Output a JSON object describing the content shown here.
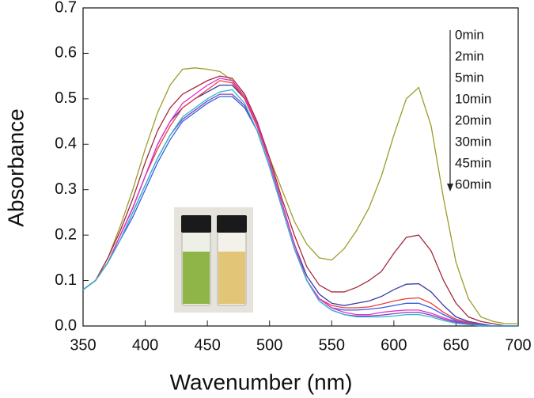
{
  "chart_data": {
    "type": "line",
    "x_label": "Wavenumber (nm)",
    "y_label": "Absorbance",
    "x": [
      350,
      360,
      370,
      380,
      390,
      400,
      410,
      420,
      430,
      440,
      450,
      460,
      470,
      480,
      490,
      500,
      510,
      520,
      530,
      540,
      550,
      560,
      570,
      580,
      590,
      600,
      610,
      620,
      630,
      640,
      650,
      660,
      670,
      680,
      690,
      700
    ],
    "series": [
      {
        "name": "0min",
        "color": "#9c9c2c",
        "values": [
          0.08,
          0.1,
          0.15,
          0.22,
          0.3,
          0.39,
          0.47,
          0.53,
          0.565,
          0.568,
          0.565,
          0.56,
          0.54,
          0.5,
          0.44,
          0.37,
          0.3,
          0.23,
          0.18,
          0.15,
          0.145,
          0.17,
          0.21,
          0.26,
          0.33,
          0.42,
          0.5,
          0.525,
          0.44,
          0.28,
          0.14,
          0.06,
          0.02,
          0.01,
          0.005,
          0.005
        ]
      },
      {
        "name": "2min",
        "color": "#a3283c",
        "values": [
          0.08,
          0.1,
          0.15,
          0.21,
          0.28,
          0.36,
          0.43,
          0.48,
          0.51,
          0.525,
          0.54,
          0.55,
          0.545,
          0.51,
          0.45,
          0.37,
          0.28,
          0.2,
          0.13,
          0.09,
          0.075,
          0.075,
          0.085,
          0.1,
          0.12,
          0.16,
          0.195,
          0.2,
          0.165,
          0.1,
          0.05,
          0.02,
          0.01,
          0.005,
          0,
          0
        ]
      },
      {
        "name": "5min",
        "color": "#3a3aa6",
        "values": [
          0.08,
          0.1,
          0.14,
          0.2,
          0.26,
          0.33,
          0.4,
          0.45,
          0.48,
          0.5,
          0.515,
          0.53,
          0.53,
          0.5,
          0.44,
          0.36,
          0.27,
          0.18,
          0.11,
          0.07,
          0.05,
          0.045,
          0.05,
          0.055,
          0.065,
          0.08,
          0.092,
          0.093,
          0.075,
          0.045,
          0.02,
          0.01,
          0.005,
          0,
          0,
          0
        ]
      },
      {
        "name": "10min",
        "color": "#f03a3a",
        "values": [
          0.08,
          0.1,
          0.14,
          0.2,
          0.26,
          0.33,
          0.39,
          0.44,
          0.48,
          0.5,
          0.52,
          0.54,
          0.535,
          0.5,
          0.44,
          0.36,
          0.27,
          0.18,
          0.1,
          0.06,
          0.045,
          0.04,
          0.04,
          0.042,
          0.048,
          0.055,
          0.06,
          0.062,
          0.05,
          0.03,
          0.015,
          0.008,
          0.004,
          0,
          0,
          0
        ]
      },
      {
        "name": "20min",
        "color": "#3060e0",
        "values": [
          0.08,
          0.1,
          0.14,
          0.19,
          0.24,
          0.3,
          0.36,
          0.41,
          0.45,
          0.47,
          0.49,
          0.505,
          0.505,
          0.48,
          0.43,
          0.35,
          0.26,
          0.17,
          0.1,
          0.06,
          0.04,
          0.035,
          0.035,
          0.037,
          0.04,
          0.045,
          0.05,
          0.05,
          0.04,
          0.025,
          0.012,
          0.006,
          0.003,
          0,
          0,
          0
        ]
      },
      {
        "name": "30min",
        "color": "#e030d0",
        "values": [
          0.08,
          0.1,
          0.14,
          0.2,
          0.26,
          0.33,
          0.4,
          0.45,
          0.49,
          0.51,
          0.53,
          0.545,
          0.54,
          0.505,
          0.445,
          0.36,
          0.27,
          0.18,
          0.1,
          0.06,
          0.04,
          0.03,
          0.025,
          0.025,
          0.03,
          0.033,
          0.035,
          0.035,
          0.028,
          0.018,
          0.01,
          0.005,
          0,
          0,
          0,
          0
        ]
      },
      {
        "name": "45min",
        "color": "#8040c0",
        "values": [
          0.08,
          0.1,
          0.14,
          0.19,
          0.25,
          0.31,
          0.37,
          0.42,
          0.455,
          0.475,
          0.495,
          0.51,
          0.51,
          0.485,
          0.43,
          0.35,
          0.26,
          0.17,
          0.1,
          0.055,
          0.035,
          0.025,
          0.022,
          0.022,
          0.024,
          0.027,
          0.03,
          0.03,
          0.024,
          0.015,
          0.008,
          0.004,
          0,
          0,
          0,
          0
        ]
      },
      {
        "name": "60min",
        "color": "#30b8c8",
        "values": [
          0.08,
          0.1,
          0.14,
          0.19,
          0.25,
          0.31,
          0.37,
          0.42,
          0.46,
          0.48,
          0.5,
          0.515,
          0.52,
          0.49,
          0.43,
          0.35,
          0.26,
          0.17,
          0.1,
          0.055,
          0.035,
          0.025,
          0.02,
          0.02,
          0.02,
          0.022,
          0.025,
          0.025,
          0.02,
          0.012,
          0.006,
          0.003,
          0,
          0,
          0,
          0
        ]
      }
    ],
    "xlim": [
      350,
      700
    ],
    "xticks": [
      350,
      400,
      450,
      500,
      550,
      600,
      650,
      700
    ],
    "ylim": [
      0,
      0.7
    ],
    "yticks": [
      {
        "value": 0,
        "label": "0.0"
      },
      0.1,
      0.2,
      0.3,
      0.4,
      0.5,
      0.6,
      0.7
    ]
  }
}
